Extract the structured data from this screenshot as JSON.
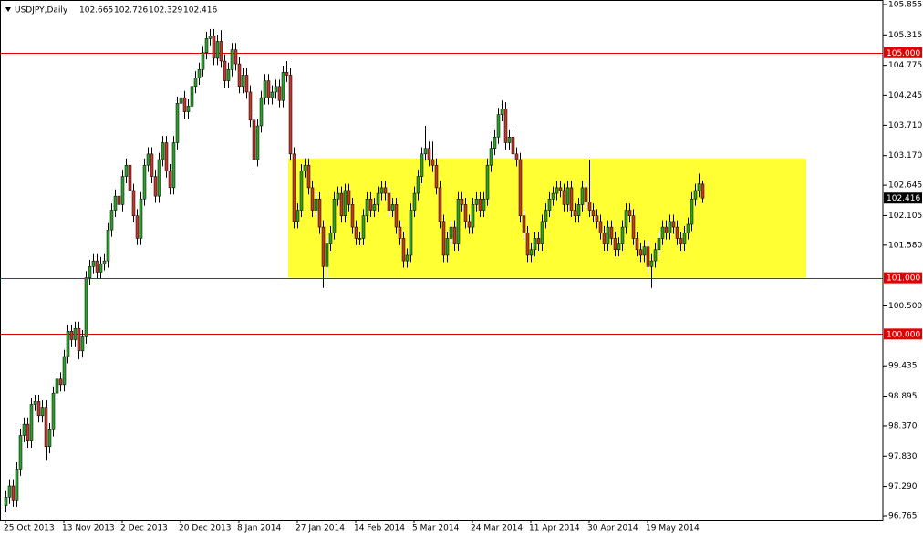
{
  "chart_data": {
    "type": "candlestick",
    "title": "USDJPY,Daily",
    "up_color": "#2ca02c",
    "down_color": "#c0392b",
    "level_color": "#e00000",
    "zone": {
      "top": 103.12,
      "bottom": 101.0,
      "color": "#ffff33"
    },
    "levels": [
      {
        "value": 105,
        "label": "105.000"
      },
      {
        "value": 101,
        "label": "101.000"
      },
      {
        "value": 100,
        "label": "100.000"
      }
    ],
    "ylim": [
      96.765,
      105.855
    ],
    "yticks": [
      105.855,
      105.315,
      104.775,
      104.245,
      {
        "value": 103.71,
        "label": "103.710"
      },
      {
        "value": 103.17,
        "label": "103.170"
      },
      102.645,
      102.105,
      {
        "value": 101.58,
        "label": "101.580"
      },
      {
        "value": 100.5,
        "label": "100.500"
      },
      99.435,
      98.895,
      {
        "value": 98.37,
        "label": "98.370"
      },
      {
        "value": 97.83,
        "label": "97.830"
      },
      {
        "value": 97.29,
        "label": "97.290"
      },
      96.765
    ],
    "categories": [
      "25 Oct 2013",
      null,
      null,
      null,
      null,
      null,
      null,
      null,
      null,
      null,
      null,
      null,
      null,
      null,
      null,
      null,
      "13 Nov 2013",
      null,
      null,
      null,
      null,
      null,
      null,
      null,
      null,
      null,
      null,
      null,
      null,
      null,
      null,
      null,
      "2 Dec 2013",
      null,
      null,
      null,
      null,
      null,
      null,
      null,
      null,
      null,
      null,
      null,
      null,
      null,
      null,
      null,
      "20 Dec 2013",
      null,
      null,
      null,
      null,
      null,
      null,
      null,
      null,
      null,
      null,
      null,
      null,
      null,
      null,
      null,
      "8 Jan 2014",
      null,
      null,
      null,
      null,
      null,
      null,
      null,
      null,
      null,
      null,
      null,
      null,
      null,
      null,
      null,
      "27 Jan 2014",
      null,
      null,
      null,
      null,
      null,
      null,
      null,
      null,
      null,
      null,
      null,
      null,
      null,
      null,
      null,
      "14 Feb 2014",
      null,
      null,
      null,
      null,
      null,
      null,
      null,
      null,
      null,
      null,
      null,
      null,
      null,
      null,
      null,
      "5 Mar 2014",
      null,
      null,
      null,
      null,
      null,
      null,
      null,
      null,
      null,
      null,
      null,
      null,
      null,
      null,
      null,
      "24 Mar 2014",
      null,
      null,
      null,
      null,
      null,
      null,
      null,
      null,
      null,
      null,
      null,
      null,
      null,
      null,
      null,
      "11 Apr 2014",
      null,
      null,
      null,
      null,
      null,
      null,
      null,
      null,
      null,
      null,
      null,
      null,
      null,
      null,
      null,
      "30 Apr 2014",
      null,
      null,
      null,
      null,
      null,
      null,
      null,
      null,
      null,
      null,
      null,
      null,
      null,
      null,
      null,
      "19 May 2014",
      null,
      null,
      null,
      null,
      null,
      null,
      null,
      null,
      null,
      null,
      null,
      null,
      null,
      null,
      null
    ],
    "values": [
      [
        96.95,
        97.22,
        96.83,
        97.1
      ],
      [
        97.1,
        97.42,
        96.98,
        97.3
      ],
      [
        97.3,
        97.42,
        96.93,
        97.05
      ],
      [
        97.05,
        97.72,
        96.93,
        97.6
      ],
      [
        97.6,
        98.32,
        97.48,
        98.2
      ],
      [
        98.2,
        98.52,
        98.08,
        98.4
      ],
      [
        98.4,
        98.52,
        97.98,
        98.1
      ],
      [
        98.1,
        98.87,
        97.98,
        98.75
      ],
      [
        98.75,
        98.92,
        98.63,
        98.8
      ],
      [
        98.8,
        98.92,
        98.43,
        98.55
      ],
      [
        98.55,
        98.82,
        98.43,
        98.7
      ],
      [
        98.7,
        98.82,
        97.75,
        98.0
      ],
      [
        98.0,
        98.42,
        97.88,
        98.3
      ],
      [
        98.3,
        99.07,
        98.18,
        98.95
      ],
      [
        98.95,
        99.32,
        98.83,
        99.2
      ],
      [
        99.2,
        99.32,
        98.98,
        99.1
      ],
      [
        99.1,
        99.72,
        98.98,
        99.6
      ],
      [
        99.6,
        100.17,
        99.48,
        100.05
      ],
      [
        100.05,
        100.17,
        99.78,
        99.9
      ],
      [
        99.9,
        100.22,
        99.78,
        100.1
      ],
      [
        100.1,
        100.22,
        99.55,
        99.7
      ],
      [
        99.7,
        100.07,
        99.58,
        99.95
      ],
      [
        99.95,
        101.12,
        99.83,
        101.0
      ],
      [
        101.0,
        101.32,
        100.88,
        101.2
      ],
      [
        101.2,
        101.42,
        101.08,
        101.3
      ],
      [
        101.3,
        101.42,
        100.98,
        101.1
      ],
      [
        101.1,
        101.37,
        100.98,
        101.25
      ],
      [
        101.25,
        101.42,
        101.13,
        101.3
      ],
      [
        101.3,
        101.97,
        101.18,
        101.85
      ],
      [
        101.85,
        102.32,
        101.73,
        102.2
      ],
      [
        102.2,
        102.57,
        102.08,
        102.45
      ],
      [
        102.45,
        102.57,
        102.18,
        102.3
      ],
      [
        102.3,
        102.92,
        102.18,
        102.8
      ],
      [
        102.8,
        103.12,
        102.68,
        103.0
      ],
      [
        103.0,
        103.12,
        102.43,
        102.55
      ],
      [
        102.55,
        102.67,
        101.98,
        102.1
      ],
      [
        102.1,
        102.22,
        101.58,
        101.7
      ],
      [
        101.7,
        102.52,
        101.58,
        102.4
      ],
      [
        102.4,
        103.12,
        102.28,
        103.0
      ],
      [
        103.0,
        103.32,
        102.88,
        103.2
      ],
      [
        103.2,
        103.32,
        102.68,
        102.8
      ],
      [
        102.8,
        102.92,
        102.33,
        102.45
      ],
      [
        102.45,
        103.22,
        102.33,
        103.1
      ],
      [
        103.1,
        103.52,
        102.98,
        103.4
      ],
      [
        103.4,
        103.52,
        102.78,
        102.9
      ],
      [
        102.9,
        103.02,
        102.48,
        102.6
      ],
      [
        102.6,
        103.52,
        102.48,
        103.4
      ],
      [
        103.4,
        104.22,
        103.28,
        104.1
      ],
      [
        104.1,
        104.32,
        103.98,
        104.2
      ],
      [
        104.2,
        104.32,
        103.83,
        103.95
      ],
      [
        103.95,
        104.17,
        103.83,
        104.05
      ],
      [
        104.05,
        104.52,
        103.93,
        104.4
      ],
      [
        104.4,
        104.67,
        104.28,
        104.55
      ],
      [
        104.55,
        104.82,
        104.43,
        104.7
      ],
      [
        104.7,
        105.12,
        104.58,
        105.0
      ],
      [
        105.0,
        105.37,
        104.88,
        105.25
      ],
      [
        105.25,
        105.42,
        105.13,
        105.3
      ],
      [
        105.3,
        105.42,
        104.78,
        104.9
      ],
      [
        104.9,
        105.32,
        104.78,
        105.2
      ],
      [
        105.2,
        105.4,
        104.73,
        104.85
      ],
      [
        104.85,
        104.97,
        104.38,
        104.5
      ],
      [
        104.5,
        104.82,
        104.38,
        104.7
      ],
      [
        104.7,
        105.17,
        104.58,
        105.05
      ],
      [
        105.05,
        105.17,
        104.68,
        104.8
      ],
      [
        104.8,
        104.92,
        104.28,
        104.4
      ],
      [
        104.4,
        104.72,
        104.28,
        104.6
      ],
      [
        104.6,
        104.72,
        104.18,
        104.3
      ],
      [
        104.3,
        104.42,
        103.68,
        103.8
      ],
      [
        103.8,
        103.92,
        102.9,
        103.1
      ],
      [
        103.1,
        103.82,
        102.98,
        103.7
      ],
      [
        103.7,
        104.32,
        103.58,
        104.2
      ],
      [
        104.2,
        104.62,
        104.08,
        104.5
      ],
      [
        104.5,
        104.62,
        104.08,
        104.2
      ],
      [
        104.2,
        104.42,
        104.08,
        104.3
      ],
      [
        104.3,
        104.52,
        104.18,
        104.4
      ],
      [
        104.4,
        104.52,
        104.03,
        104.15
      ],
      [
        104.15,
        104.77,
        104.03,
        104.65
      ],
      [
        104.65,
        104.85,
        104.48,
        104.6
      ],
      [
        104.6,
        104.72,
        103.08,
        103.2
      ],
      [
        103.2,
        103.32,
        101.88,
        102.0
      ],
      [
        102.0,
        102.32,
        101.88,
        102.2
      ],
      [
        102.2,
        103.02,
        102.08,
        102.9
      ],
      [
        102.9,
        103.12,
        102.78,
        103.0
      ],
      [
        103.0,
        103.12,
        102.48,
        102.6
      ],
      [
        102.6,
        102.72,
        102.08,
        102.2
      ],
      [
        102.2,
        102.52,
        102.08,
        102.4
      ],
      [
        102.4,
        102.52,
        101.78,
        101.9
      ],
      [
        101.9,
        102.02,
        100.82,
        101.2
      ],
      [
        101.2,
        101.72,
        100.8,
        101.6
      ],
      [
        101.6,
        101.92,
        101.48,
        101.8
      ],
      [
        101.8,
        102.52,
        101.68,
        102.4
      ],
      [
        102.4,
        102.62,
        102.28,
        102.5
      ],
      [
        102.5,
        102.62,
        101.98,
        102.1
      ],
      [
        102.1,
        102.67,
        101.98,
        102.55
      ],
      [
        102.55,
        102.67,
        102.18,
        102.3
      ],
      [
        102.3,
        102.42,
        101.78,
        101.9
      ],
      [
        101.9,
        102.02,
        101.58,
        101.7
      ],
      [
        101.7,
        101.82,
        101.58,
        101.7
      ],
      [
        101.7,
        102.22,
        101.58,
        102.1
      ],
      [
        102.1,
        102.52,
        101.98,
        102.4
      ],
      [
        102.4,
        102.52,
        102.08,
        102.2
      ],
      [
        102.2,
        102.42,
        102.08,
        102.3
      ],
      [
        102.3,
        102.62,
        102.18,
        102.5
      ],
      [
        102.5,
        102.72,
        102.38,
        102.6
      ],
      [
        102.6,
        102.72,
        102.38,
        102.5
      ],
      [
        102.5,
        102.62,
        102.08,
        102.2
      ],
      [
        102.2,
        102.42,
        102.08,
        102.3
      ],
      [
        102.3,
        102.42,
        101.78,
        101.9
      ],
      [
        101.9,
        102.02,
        101.58,
        101.7
      ],
      [
        101.7,
        101.82,
        101.18,
        101.3
      ],
      [
        101.3,
        101.52,
        101.18,
        101.4
      ],
      [
        101.4,
        102.32,
        101.28,
        102.2
      ],
      [
        102.2,
        102.62,
        102.08,
        102.5
      ],
      [
        102.5,
        102.92,
        102.38,
        102.8
      ],
      [
        102.8,
        103.32,
        102.68,
        103.2
      ],
      [
        103.2,
        103.7,
        103.08,
        103.3
      ],
      [
        103.3,
        103.42,
        102.98,
        103.1
      ],
      [
        103.1,
        103.42,
        102.88,
        103.0
      ],
      [
        103.0,
        103.12,
        102.48,
        102.6
      ],
      [
        102.6,
        102.72,
        101.88,
        102.0
      ],
      [
        102.0,
        102.12,
        101.28,
        101.4
      ],
      [
        101.4,
        101.82,
        101.28,
        101.7
      ],
      [
        101.7,
        102.02,
        101.58,
        101.9
      ],
      [
        101.9,
        102.02,
        101.48,
        101.6
      ],
      [
        101.6,
        102.52,
        101.48,
        102.4
      ],
      [
        102.4,
        102.52,
        102.18,
        102.3
      ],
      [
        102.3,
        102.42,
        101.88,
        102.0
      ],
      [
        102.0,
        102.12,
        101.78,
        101.9
      ],
      [
        101.9,
        102.42,
        101.78,
        102.3
      ],
      [
        102.3,
        102.52,
        102.18,
        102.4
      ],
      [
        102.4,
        102.52,
        102.08,
        102.2
      ],
      [
        102.2,
        102.52,
        102.08,
        102.4
      ],
      [
        102.4,
        103.12,
        102.28,
        103.0
      ],
      [
        103.0,
        103.42,
        102.88,
        103.3
      ],
      [
        103.3,
        103.62,
        103.18,
        103.5
      ],
      [
        103.5,
        104.02,
        103.38,
        103.9
      ],
      [
        103.9,
        104.15,
        103.78,
        104.0
      ],
      [
        104.0,
        104.12,
        103.28,
        103.4
      ],
      [
        103.4,
        103.62,
        103.28,
        103.5
      ],
      [
        103.5,
        103.62,
        103.08,
        103.2
      ],
      [
        103.2,
        103.32,
        102.98,
        103.1
      ],
      [
        103.1,
        103.22,
        101.98,
        102.1
      ],
      [
        102.1,
        102.22,
        101.68,
        101.8
      ],
      [
        101.8,
        101.92,
        101.28,
        101.4
      ],
      [
        101.4,
        101.62,
        101.28,
        101.5
      ],
      [
        101.5,
        101.82,
        101.38,
        101.7
      ],
      [
        101.7,
        101.82,
        101.48,
        101.6
      ],
      [
        101.6,
        102.12,
        101.48,
        102.0
      ],
      [
        102.0,
        102.32,
        101.88,
        102.2
      ],
      [
        102.2,
        102.52,
        102.08,
        102.4
      ],
      [
        102.4,
        102.62,
        102.28,
        102.5
      ],
      [
        102.5,
        102.72,
        102.38,
        102.6
      ],
      [
        102.6,
        102.72,
        102.43,
        102.55
      ],
      [
        102.55,
        102.67,
        102.18,
        102.3
      ],
      [
        102.3,
        102.72,
        102.18,
        102.6
      ],
      [
        102.6,
        102.72,
        102.08,
        102.2
      ],
      [
        102.2,
        102.32,
        101.98,
        102.1
      ],
      [
        102.1,
        102.42,
        101.98,
        102.3
      ],
      [
        102.3,
        102.72,
        102.18,
        102.6
      ],
      [
        102.6,
        102.72,
        102.23,
        102.35
      ],
      [
        102.35,
        103.1,
        102.08,
        102.2
      ],
      [
        102.2,
        102.32,
        101.98,
        102.1
      ],
      [
        102.1,
        102.22,
        101.88,
        102.0
      ],
      [
        102.0,
        102.12,
        101.68,
        101.8
      ],
      [
        101.8,
        101.92,
        101.48,
        101.6
      ],
      [
        101.6,
        102.02,
        101.48,
        101.9
      ],
      [
        101.9,
        102.02,
        101.58,
        101.7
      ],
      [
        101.7,
        101.82,
        101.38,
        101.5
      ],
      [
        101.5,
        101.72,
        101.38,
        101.6
      ],
      [
        101.6,
        102.02,
        101.48,
        101.9
      ],
      [
        101.9,
        102.32,
        101.78,
        102.2
      ],
      [
        102.2,
        102.32,
        101.98,
        102.1
      ],
      [
        102.1,
        102.22,
        101.58,
        101.7
      ],
      [
        101.7,
        101.82,
        101.38,
        101.5
      ],
      [
        101.5,
        101.62,
        101.28,
        101.4
      ],
      [
        101.4,
        101.67,
        101.28,
        101.55
      ],
      [
        101.55,
        101.67,
        101.08,
        101.2
      ],
      [
        101.2,
        101.42,
        100.82,
        101.3
      ],
      [
        101.3,
        101.62,
        101.18,
        101.5
      ],
      [
        101.5,
        101.82,
        101.38,
        101.7
      ],
      [
        101.7,
        102.02,
        101.58,
        101.9
      ],
      [
        101.9,
        102.02,
        101.68,
        101.8
      ],
      [
        101.8,
        102.12,
        101.68,
        102.0
      ],
      [
        102.0,
        102.12,
        101.78,
        101.9
      ],
      [
        101.9,
        102.02,
        101.58,
        101.7
      ],
      [
        101.7,
        101.82,
        101.48,
        101.6
      ],
      [
        101.6,
        101.92,
        101.48,
        101.8
      ],
      [
        101.8,
        102.07,
        101.68,
        101.95
      ],
      [
        101.95,
        102.52,
        101.83,
        102.4
      ],
      [
        102.4,
        102.67,
        102.28,
        102.55
      ],
      [
        102.55,
        102.85,
        102.43,
        102.67
      ],
      [
        102.665,
        102.726,
        102.329,
        102.416
      ]
    ]
  }
}
